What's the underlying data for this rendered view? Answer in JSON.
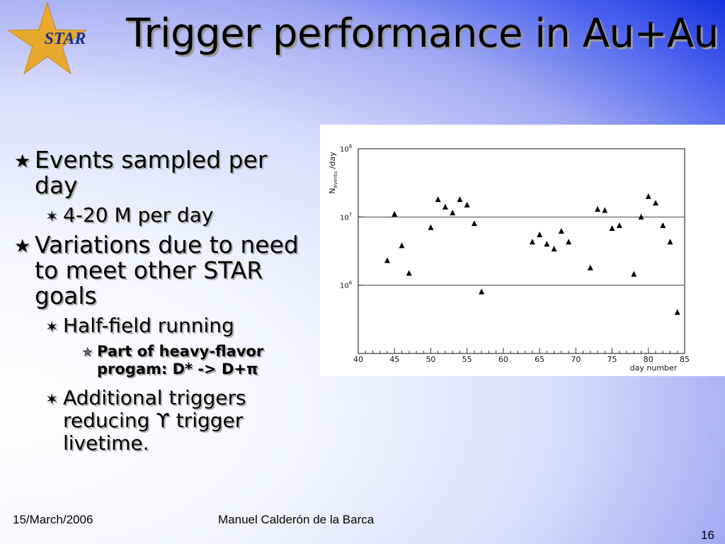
{
  "logo": {
    "text": "STAR"
  },
  "title": "Trigger performance in Au+Au",
  "bullets": [
    {
      "level": 1,
      "marker": "★",
      "text": "Events sampled per day"
    },
    {
      "level": 2,
      "marker": "✶",
      "text": "4-20 M per day"
    },
    {
      "level": 1,
      "marker": "★",
      "text": "Variations due to need to meet other STAR goals"
    },
    {
      "level": 2,
      "marker": "✶",
      "text": "Half-field running"
    },
    {
      "level": 3,
      "marker": "✯",
      "text": "Part of heavy-flavor progam: D* -> D+π"
    },
    {
      "level": 2,
      "marker": "✶",
      "text": "Additional triggers reducing ϒ trigger livetime."
    }
  ],
  "chart_data": {
    "type": "scatter",
    "marker": "triangle",
    "xlabel": "day number",
    "ylabel_main": "N",
    "ylabel_sub": "events",
    "ylabel_tail": " /day",
    "xlim": [
      40,
      85
    ],
    "x_ticks": [
      40,
      45,
      50,
      55,
      60,
      65,
      70,
      75,
      80,
      85
    ],
    "y_scale": "log",
    "ylim": [
      100000,
      100000000
    ],
    "y_tick_labels": [
      {
        "value": 1000000,
        "base": "10",
        "exp": "6"
      },
      {
        "value": 10000000,
        "base": "10",
        "exp": "7"
      },
      {
        "value": 100000000,
        "base": "10",
        "exp": "8"
      }
    ],
    "grid_lines_y": [
      1000000,
      10000000
    ],
    "points": [
      {
        "x": 44,
        "y": 2300000
      },
      {
        "x": 45,
        "y": 11000000
      },
      {
        "x": 46,
        "y": 3800000
      },
      {
        "x": 47,
        "y": 1500000
      },
      {
        "x": 50,
        "y": 7000000
      },
      {
        "x": 51,
        "y": 18000000
      },
      {
        "x": 52,
        "y": 14000000
      },
      {
        "x": 53,
        "y": 11500000
      },
      {
        "x": 54,
        "y": 18000000
      },
      {
        "x": 55,
        "y": 15000000
      },
      {
        "x": 56,
        "y": 8000000
      },
      {
        "x": 57,
        "y": 800000
      },
      {
        "x": 64,
        "y": 4300000
      },
      {
        "x": 65,
        "y": 5500000
      },
      {
        "x": 66,
        "y": 4000000
      },
      {
        "x": 67,
        "y": 3400000
      },
      {
        "x": 68,
        "y": 6200000
      },
      {
        "x": 69,
        "y": 4300000
      },
      {
        "x": 72,
        "y": 1800000
      },
      {
        "x": 73,
        "y": 13000000
      },
      {
        "x": 74,
        "y": 12500000
      },
      {
        "x": 75,
        "y": 6800000
      },
      {
        "x": 76,
        "y": 7500000
      },
      {
        "x": 78,
        "y": 1450000
      },
      {
        "x": 79,
        "y": 10000000
      },
      {
        "x": 80,
        "y": 20000000
      },
      {
        "x": 81,
        "y": 16000000
      },
      {
        "x": 82,
        "y": 7500000
      },
      {
        "x": 83,
        "y": 4300000
      },
      {
        "x": 84,
        "y": 400000
      }
    ]
  },
  "footer": {
    "date": "15/March/2006",
    "author": "Manuel Calderón de la Barca",
    "page": "16"
  }
}
